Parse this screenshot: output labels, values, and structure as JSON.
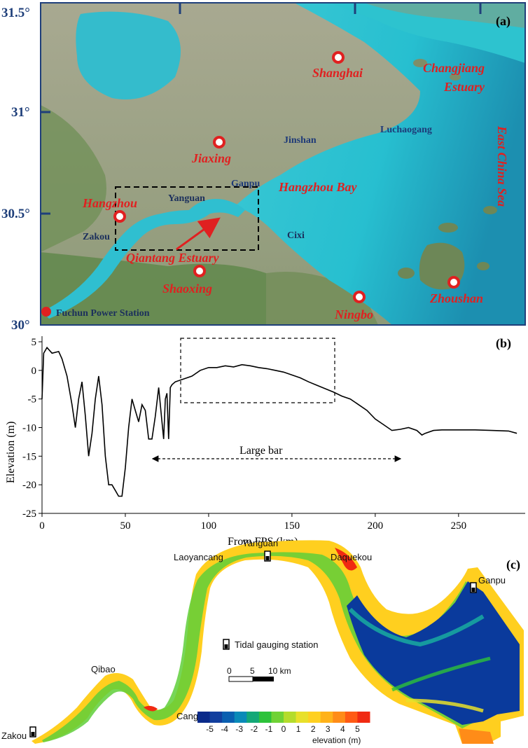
{
  "panel_a": {
    "tag": "(a)",
    "lat_labels": [
      "31.5°",
      "31°",
      "30.5°",
      "30°"
    ],
    "cities": [
      {
        "name": "Shanghai"
      },
      {
        "name": "Jiaxing"
      },
      {
        "name": "Hangzhou"
      },
      {
        "name": "Shaoxing"
      },
      {
        "name": "Ningbo"
      },
      {
        "name": "Zhoushan"
      },
      {
        "name": "Fuchun Power Station"
      }
    ],
    "places": [
      "Jinshan",
      "Luchaogang",
      "Ganpu",
      "Yanguan",
      "Zakou",
      "Cixi"
    ],
    "water_labels": [
      "Changjiang",
      "Estuary",
      "Hangzhou Bay",
      "East China Sea",
      "Qiantang Estuary"
    ],
    "colors": {
      "marker": "#e02020",
      "box": "#000000",
      "arrow": "#e02020"
    }
  },
  "panel_b": {
    "tag": "(b)",
    "annotation": "Large bar",
    "chart_data": {
      "type": "line",
      "xlabel": "From FPS (km)",
      "ylabel": "Elevation (m)",
      "xlim": [
        0,
        290
      ],
      "ylim": [
        -25,
        5
      ],
      "xticks": [
        "0",
        "50",
        "100",
        "150",
        "200",
        "250"
      ],
      "yticks": [
        "5",
        "0",
        "-5",
        "-10",
        "-15",
        "-20",
        "-25"
      ],
      "series": [
        {
          "x": [
            0,
            1,
            3,
            6,
            10,
            12,
            15,
            18,
            20,
            22,
            24,
            26,
            28,
            30,
            32,
            34,
            36,
            38,
            40,
            42,
            44,
            46,
            48,
            50,
            52,
            54,
            56,
            58,
            60,
            62,
            64,
            66,
            68,
            70,
            72,
            73,
            74,
            75,
            76,
            77,
            78,
            80,
            85,
            90,
            95,
            100,
            105,
            110,
            115,
            120,
            125,
            130,
            135,
            140,
            145,
            150,
            155,
            160,
            165,
            170,
            175,
            180,
            185,
            190,
            195,
            200,
            205,
            210,
            215,
            220,
            225,
            228,
            230,
            235,
            240,
            250,
            260,
            270,
            280,
            285
          ],
          "values": [
            -5,
            3,
            4,
            3,
            3.3,
            2,
            -1,
            -6,
            -10,
            -5,
            -2,
            -8,
            -15,
            -11,
            -5,
            -1,
            -6,
            -15,
            -20,
            -20,
            -21,
            -22,
            -22,
            -17,
            -10,
            -5,
            -7,
            -9,
            -6,
            -7,
            -12,
            -12,
            -8,
            -3,
            -9,
            -12,
            -5,
            -4,
            -12,
            -3,
            -2.5,
            -2,
            -1.5,
            -1,
            0,
            0.5,
            0.5,
            0.8,
            0.6,
            1,
            0.8,
            0.5,
            0.3,
            0,
            -0.3,
            -0.8,
            -1.3,
            -2,
            -2.6,
            -3.2,
            -3.8,
            -4.5,
            -5,
            -6,
            -7,
            -8.5,
            -9.5,
            -10.5,
            -10.3,
            -10,
            -10.5,
            -11.3,
            -11,
            -10.5,
            -10.4,
            -10.4,
            -10.4,
            -10.5,
            -10.6,
            -11
          ]
        }
      ]
    }
  },
  "panel_c": {
    "tag": "(c)",
    "stations": [
      "Yanguan",
      "Laoyancang",
      "Daquekou",
      "Ganpu",
      "Qibao",
      "Cangqian",
      "Zakou"
    ],
    "legend_label": "Tidal gauging station",
    "scale_labels": [
      "0",
      "5",
      "10 km"
    ],
    "colorbar": {
      "ticks": [
        "-5",
        "-4",
        "-3",
        "-2",
        "-1",
        "0",
        "1",
        "2",
        "3",
        "4",
        "5"
      ],
      "title": "elevation (m)",
      "colors": [
        "#0a2a8a",
        "#123f9e",
        "#0a5fb0",
        "#0a8ab8",
        "#14a877",
        "#2cc23a",
        "#6fd235",
        "#b4dc2c",
        "#e8e02a",
        "#ffd020",
        "#ffb21a",
        "#ff8c18",
        "#ff5a14",
        "#f02a12"
      ]
    }
  }
}
